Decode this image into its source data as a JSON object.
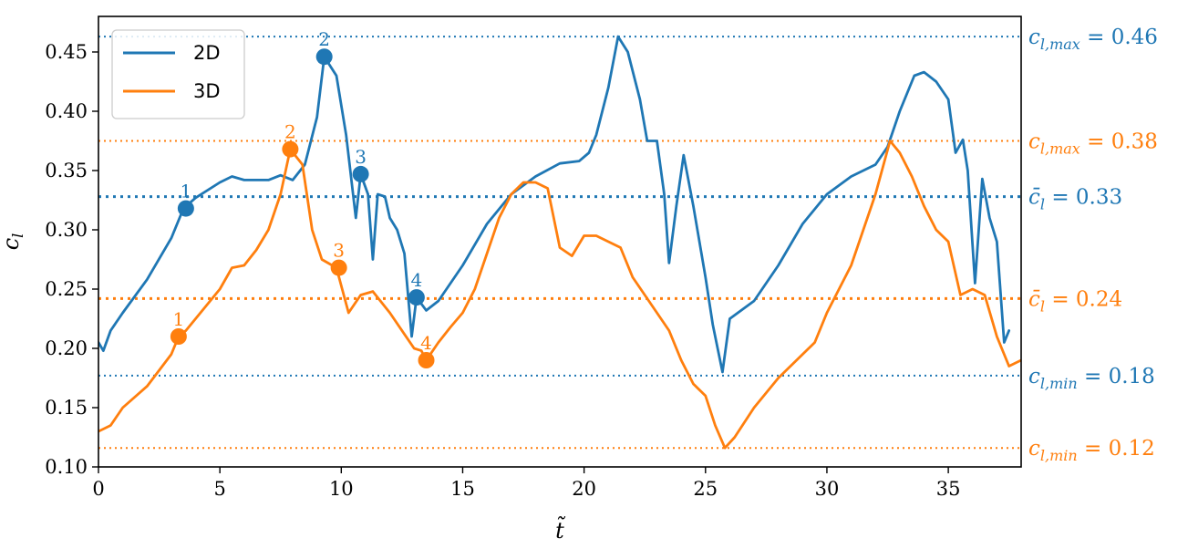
{
  "colors": {
    "series_2d": "#1f77b4",
    "series_3d": "#ff7f0e"
  },
  "chart_data": {
    "type": "line",
    "title": "",
    "xlabel": "t̃",
    "ylabel": "c_l",
    "xlim": [
      0,
      38
    ],
    "ylim": [
      0.1,
      0.48
    ],
    "xticks": [
      "0",
      "5",
      "10",
      "15",
      "20",
      "25",
      "30",
      "35"
    ],
    "yticks": [
      "0.10",
      "0.15",
      "0.20",
      "0.25",
      "0.30",
      "0.35",
      "0.40",
      "0.45"
    ],
    "grid": false,
    "legend_position": "top-left",
    "series": [
      {
        "name": "2D",
        "color": "#1f77b4",
        "points": [
          [
            0,
            0.205
          ],
          [
            0.2,
            0.198
          ],
          [
            0.5,
            0.215
          ],
          [
            1,
            0.23
          ],
          [
            2,
            0.258
          ],
          [
            3,
            0.293
          ],
          [
            3.5,
            0.318
          ],
          [
            4,
            0.327
          ],
          [
            5,
            0.34
          ],
          [
            5.5,
            0.345
          ],
          [
            6,
            0.342
          ],
          [
            7,
            0.342
          ],
          [
            7.5,
            0.346
          ],
          [
            8,
            0.342
          ],
          [
            8.5,
            0.355
          ],
          [
            9,
            0.395
          ],
          [
            9.3,
            0.446
          ],
          [
            9.8,
            0.43
          ],
          [
            10.2,
            0.38
          ],
          [
            10.6,
            0.31
          ],
          [
            10.8,
            0.347
          ],
          [
            11.1,
            0.33
          ],
          [
            11.3,
            0.275
          ],
          [
            11.5,
            0.33
          ],
          [
            11.8,
            0.328
          ],
          [
            12,
            0.31
          ],
          [
            12.3,
            0.3
          ],
          [
            12.6,
            0.28
          ],
          [
            12.9,
            0.21
          ],
          [
            13.1,
            0.243
          ],
          [
            13.5,
            0.232
          ],
          [
            14,
            0.24
          ],
          [
            15,
            0.27
          ],
          [
            16,
            0.305
          ],
          [
            17,
            0.33
          ],
          [
            18,
            0.345
          ],
          [
            19,
            0.356
          ],
          [
            19.8,
            0.358
          ],
          [
            20.2,
            0.365
          ],
          [
            20.5,
            0.38
          ],
          [
            21,
            0.42
          ],
          [
            21.4,
            0.463
          ],
          [
            21.8,
            0.45
          ],
          [
            22.3,
            0.41
          ],
          [
            22.6,
            0.375
          ],
          [
            23,
            0.375
          ],
          [
            23.3,
            0.33
          ],
          [
            23.5,
            0.272
          ],
          [
            23.8,
            0.32
          ],
          [
            24.1,
            0.363
          ],
          [
            24.5,
            0.32
          ],
          [
            25,
            0.26
          ],
          [
            25.3,
            0.22
          ],
          [
            25.7,
            0.18
          ],
          [
            26,
            0.225
          ],
          [
            27,
            0.24
          ],
          [
            28,
            0.27
          ],
          [
            29,
            0.305
          ],
          [
            30,
            0.33
          ],
          [
            31,
            0.345
          ],
          [
            32,
            0.355
          ],
          [
            32.5,
            0.37
          ],
          [
            33,
            0.4
          ],
          [
            33.6,
            0.43
          ],
          [
            34,
            0.433
          ],
          [
            34.5,
            0.425
          ],
          [
            35,
            0.41
          ],
          [
            35.3,
            0.365
          ],
          [
            35.6,
            0.376
          ],
          [
            35.8,
            0.35
          ],
          [
            36.1,
            0.255
          ],
          [
            36.4,
            0.343
          ],
          [
            36.7,
            0.31
          ],
          [
            37,
            0.29
          ],
          [
            37.3,
            0.205
          ],
          [
            37.5,
            0.215
          ]
        ]
      },
      {
        "name": "3D",
        "color": "#ff7f0e",
        "points": [
          [
            0,
            0.13
          ],
          [
            0.5,
            0.135
          ],
          [
            1,
            0.15
          ],
          [
            2,
            0.168
          ],
          [
            3,
            0.195
          ],
          [
            3.3,
            0.21
          ],
          [
            3.6,
            0.215
          ],
          [
            4,
            0.225
          ],
          [
            5,
            0.25
          ],
          [
            5.5,
            0.268
          ],
          [
            6,
            0.27
          ],
          [
            6.5,
            0.283
          ],
          [
            7,
            0.3
          ],
          [
            7.5,
            0.33
          ],
          [
            7.9,
            0.368
          ],
          [
            8.4,
            0.355
          ],
          [
            8.8,
            0.3
          ],
          [
            9.2,
            0.275
          ],
          [
            9.8,
            0.268
          ],
          [
            10.3,
            0.23
          ],
          [
            10.8,
            0.245
          ],
          [
            11.3,
            0.248
          ],
          [
            12,
            0.23
          ],
          [
            12.6,
            0.212
          ],
          [
            13,
            0.2
          ],
          [
            13.3,
            0.198
          ],
          [
            13.5,
            0.19
          ],
          [
            14,
            0.205
          ],
          [
            14.5,
            0.218
          ],
          [
            15,
            0.23
          ],
          [
            15.5,
            0.25
          ],
          [
            16,
            0.28
          ],
          [
            16.5,
            0.31
          ],
          [
            17,
            0.33
          ],
          [
            17.5,
            0.34
          ],
          [
            18,
            0.34
          ],
          [
            18.5,
            0.335
          ],
          [
            19,
            0.285
          ],
          [
            19.5,
            0.278
          ],
          [
            20,
            0.295
          ],
          [
            20.5,
            0.295
          ],
          [
            21,
            0.29
          ],
          [
            21.5,
            0.285
          ],
          [
            22,
            0.26
          ],
          [
            22.5,
            0.245
          ],
          [
            23,
            0.23
          ],
          [
            23.5,
            0.215
          ],
          [
            24,
            0.19
          ],
          [
            24.5,
            0.17
          ],
          [
            25,
            0.16
          ],
          [
            25.4,
            0.135
          ],
          [
            25.8,
            0.116
          ],
          [
            26.2,
            0.125
          ],
          [
            27,
            0.15
          ],
          [
            28,
            0.175
          ],
          [
            29,
            0.195
          ],
          [
            29.5,
            0.205
          ],
          [
            30,
            0.23
          ],
          [
            31,
            0.27
          ],
          [
            32,
            0.33
          ],
          [
            32.6,
            0.375
          ],
          [
            33,
            0.365
          ],
          [
            33.5,
            0.345
          ],
          [
            34,
            0.32
          ],
          [
            34.5,
            0.3
          ],
          [
            35,
            0.29
          ],
          [
            35.5,
            0.245
          ],
          [
            36,
            0.25
          ],
          [
            36.5,
            0.245
          ],
          [
            37,
            0.21
          ],
          [
            37.5,
            0.185
          ],
          [
            38,
            0.19
          ]
        ]
      }
    ],
    "markers": [
      {
        "series": "2D",
        "label": "1",
        "x": 3.6,
        "y": 0.318
      },
      {
        "series": "2D",
        "label": "2",
        "x": 9.3,
        "y": 0.446
      },
      {
        "series": "2D",
        "label": "3",
        "x": 10.8,
        "y": 0.347
      },
      {
        "series": "2D",
        "label": "4",
        "x": 13.1,
        "y": 0.243
      },
      {
        "series": "3D",
        "label": "1",
        "x": 3.3,
        "y": 0.21
      },
      {
        "series": "3D",
        "label": "2",
        "x": 7.9,
        "y": 0.368
      },
      {
        "series": "3D",
        "label": "3",
        "x": 9.9,
        "y": 0.268
      },
      {
        "series": "3D",
        "label": "4",
        "x": 13.5,
        "y": 0.19
      }
    ],
    "reference_lines": [
      {
        "series": "2D",
        "y": 0.463,
        "label": "c_{l,max} = 0.46",
        "dash": "fine"
      },
      {
        "series": "3D",
        "y": 0.375,
        "label": "c_{l,max} = 0.38",
        "dash": "fine"
      },
      {
        "series": "2D",
        "y": 0.328,
        "label": "c̄_l = 0.33",
        "dash": "mean"
      },
      {
        "series": "3D",
        "y": 0.242,
        "label": "c̄_l = 0.24",
        "dash": "mean"
      },
      {
        "series": "2D",
        "y": 0.177,
        "label": "c_{l,min} = 0.18",
        "dash": "fine"
      },
      {
        "series": "3D",
        "y": 0.116,
        "label": "c_{l,min} = 0.12",
        "dash": "fine"
      }
    ]
  }
}
